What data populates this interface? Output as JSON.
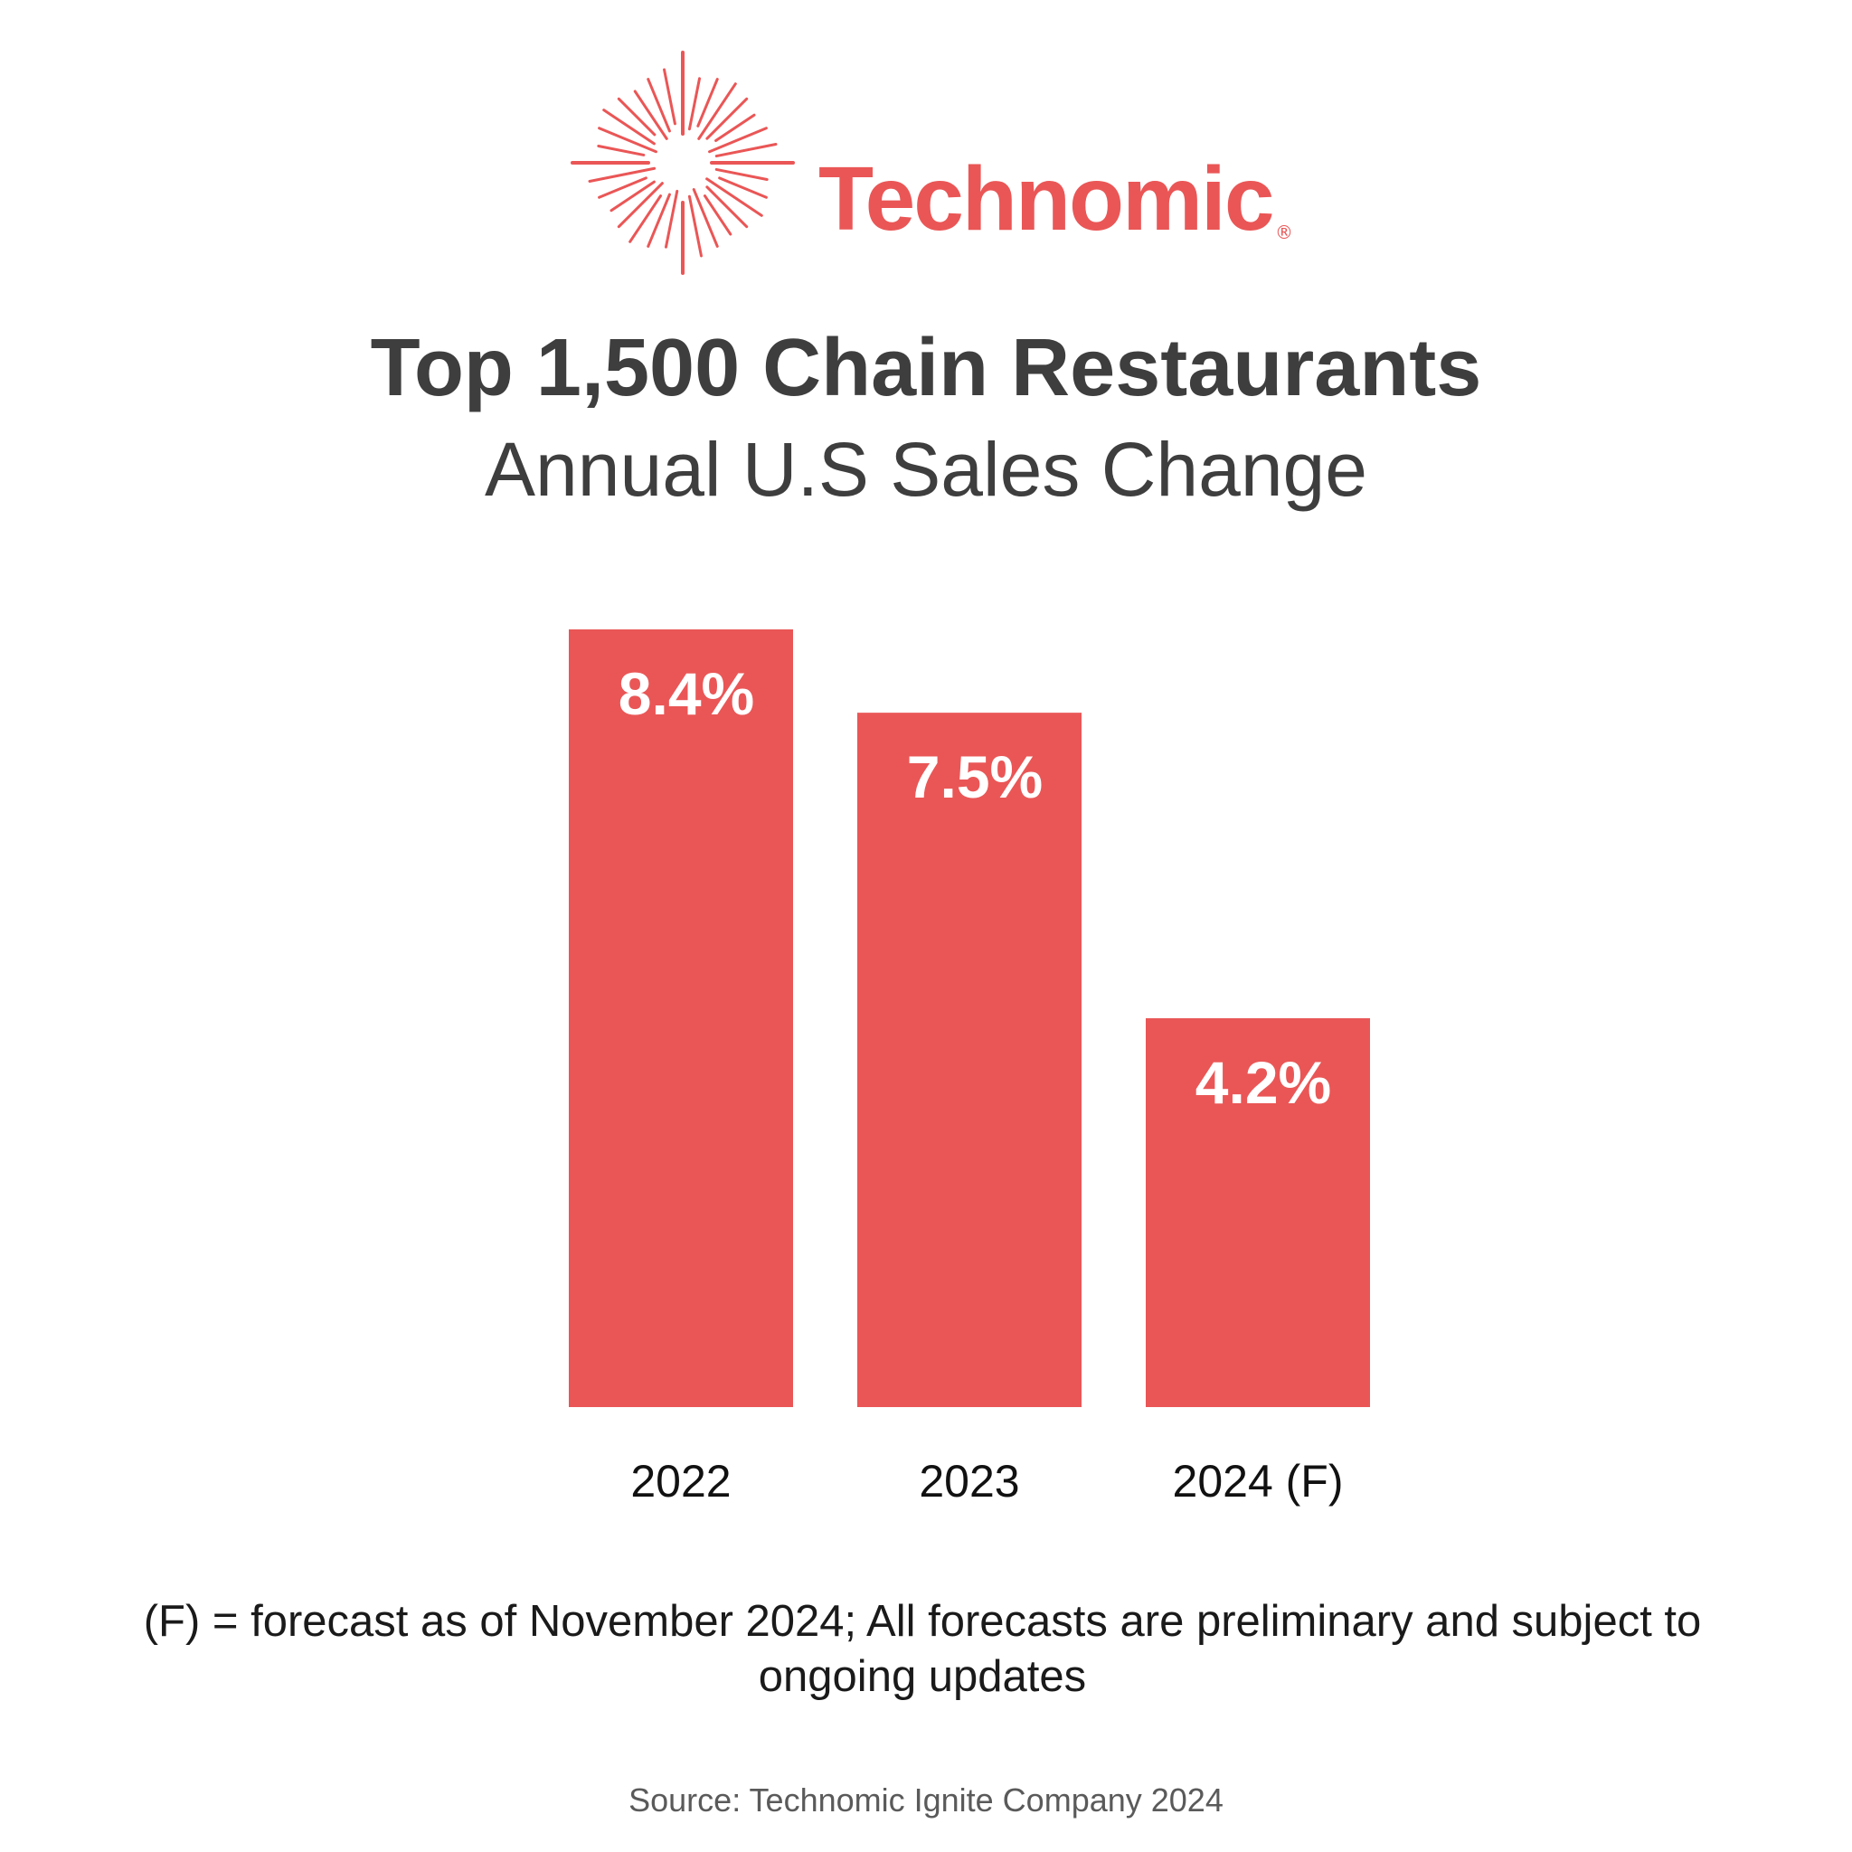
{
  "brand": {
    "name": "Technomic",
    "registered_mark": "®",
    "color": "#EA5656"
  },
  "chart_data": {
    "type": "bar",
    "title": "Top 1,500 Chain Restaurants",
    "subtitle": "Annual U.S Sales Change",
    "categories": [
      "2022",
      "2023",
      "2024 (F)"
    ],
    "values": [
      8.4,
      7.5,
      4.2
    ],
    "value_labels": [
      "8.4%",
      "7.5%",
      "4.2%"
    ],
    "unit": "%",
    "xlabel": "",
    "ylabel": "",
    "ylim": [
      0,
      8.4
    ],
    "grid": false,
    "legend": "none",
    "bar_color": "#EA5656",
    "label_color": "#ffffff"
  },
  "footnote": "(F) = forecast as of November 2024; All forecasts are preliminary and subject to ongoing updates",
  "source": "Source: Technomic Ignite Company 2024"
}
